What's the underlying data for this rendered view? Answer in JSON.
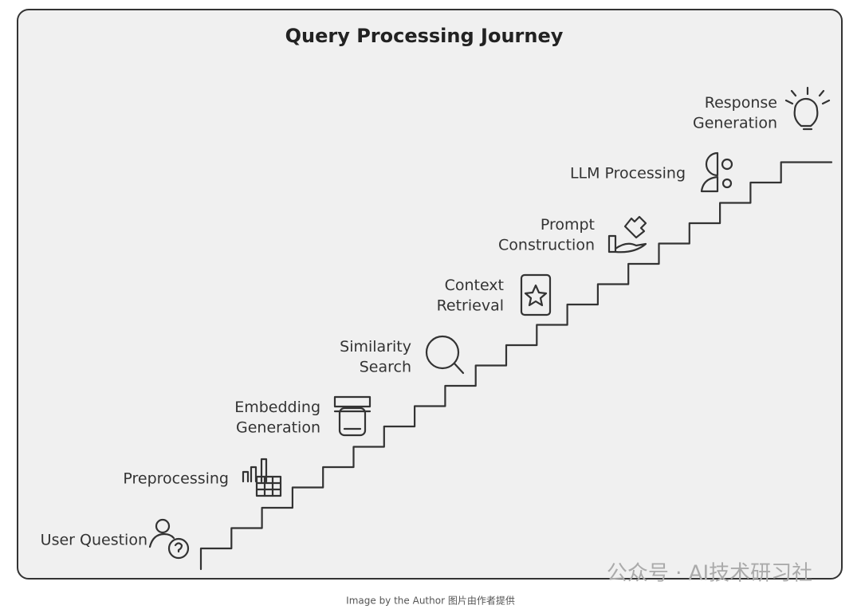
{
  "title": "Query Processing Journey",
  "steps": [
    {
      "lines": [
        "User Question"
      ]
    },
    {
      "lines": [
        "Preprocessing"
      ]
    },
    {
      "lines": [
        "Embedding",
        "Generation"
      ]
    },
    {
      "lines": [
        "Similarity",
        "Search"
      ]
    },
    {
      "lines": [
        "Context",
        "Retrieval"
      ]
    },
    {
      "lines": [
        "Prompt",
        "Construction"
      ]
    },
    {
      "lines": [
        "LLM Processing"
      ]
    },
    {
      "lines": [
        "Response",
        "Generation"
      ]
    }
  ],
  "watermark": "公众号 · AI技术研习社",
  "caption": "Image by the Author 图片由作者提供"
}
